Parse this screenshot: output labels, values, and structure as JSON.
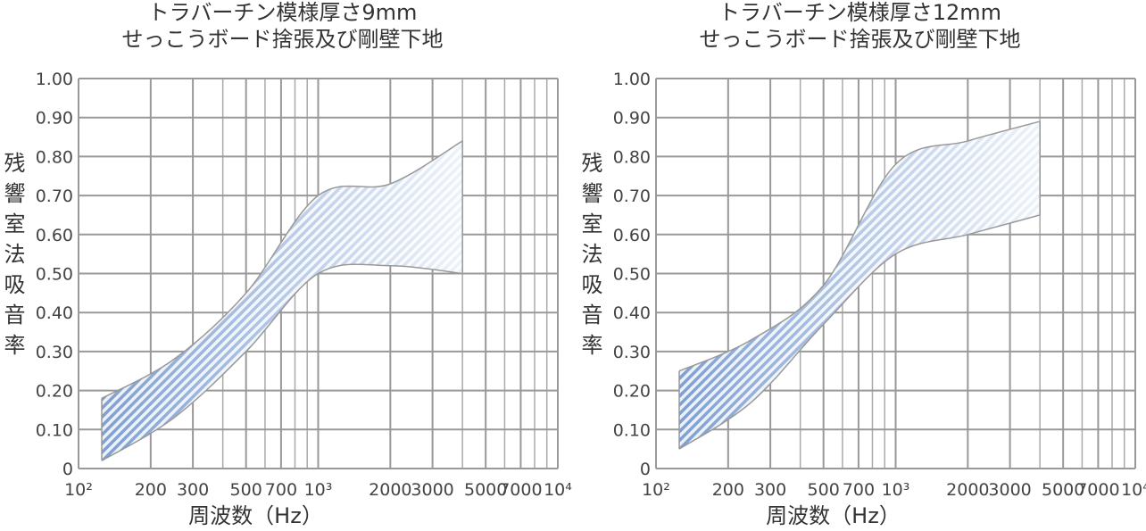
{
  "chart_data": [
    {
      "type": "band",
      "title": "トラバーチン模様厚さ9mm",
      "subtitle": "せっこうボード捨張及び剛壁下地",
      "x_label": "周波数（Hz）",
      "y_label": "残響室法吸音率",
      "x": [
        125,
        250,
        500,
        1000,
        2000,
        4000
      ],
      "lower": [
        0.02,
        0.13,
        0.3,
        0.5,
        0.52,
        0.5
      ],
      "upper": [
        0.18,
        0.28,
        0.45,
        0.7,
        0.73,
        0.84
      ],
      "xscale": "log",
      "xlim": [
        100,
        10000
      ],
      "ylim": [
        0,
        1
      ],
      "xticks": [
        {
          "value": 100,
          "label": "10²"
        },
        200,
        300,
        500,
        700,
        {
          "value": 1000,
          "label": "10³"
        },
        2000,
        3000,
        5000,
        7000,
        {
          "value": 10000,
          "label": "10⁴"
        }
      ],
      "minor_xticks": [
        400,
        600,
        800,
        900,
        4000,
        6000,
        8000,
        9000
      ],
      "yticks": [
        0,
        {
          "value": 0.1,
          "label": "0.10"
        },
        {
          "value": 0.2,
          "label": "0.20"
        },
        {
          "value": 0.3,
          "label": "0.30"
        },
        {
          "value": 0.4,
          "label": "0.40"
        },
        {
          "value": 0.5,
          "label": "0.50"
        },
        {
          "value": 0.6,
          "label": "0.60"
        },
        {
          "value": 0.7,
          "label": "0.70"
        },
        {
          "value": 0.8,
          "label": "0.80"
        },
        {
          "value": 0.9,
          "label": "0.90"
        },
        {
          "value": 1,
          "label": "1.00"
        }
      ],
      "grid": true,
      "color": "#7f9fd0"
    },
    {
      "type": "band",
      "title": "トラバーチン模様厚さ12mm",
      "subtitle": "せっこうボード捨張及び剛壁下地",
      "x_label": "周波数（Hz）",
      "y_label": "残響室法吸音率",
      "x": [
        125,
        250,
        500,
        1000,
        2000,
        4000
      ],
      "lower": [
        0.05,
        0.17,
        0.37,
        0.55,
        0.6,
        0.65
      ],
      "upper": [
        0.25,
        0.33,
        0.47,
        0.78,
        0.84,
        0.89
      ],
      "xscale": "log",
      "xlim": [
        100,
        10000
      ],
      "ylim": [
        0,
        1
      ],
      "xticks": [
        {
          "value": 100,
          "label": "10²"
        },
        200,
        300,
        500,
        700,
        {
          "value": 1000,
          "label": "10³"
        },
        2000,
        3000,
        5000,
        7000,
        {
          "value": 10000,
          "label": "10⁴"
        }
      ],
      "minor_xticks": [
        400,
        600,
        800,
        900,
        4000,
        6000,
        8000,
        9000
      ],
      "yticks": [
        0,
        {
          "value": 0.1,
          "label": "0.10"
        },
        {
          "value": 0.2,
          "label": "0.20"
        },
        {
          "value": 0.3,
          "label": "0.30"
        },
        {
          "value": 0.4,
          "label": "0.40"
        },
        {
          "value": 0.5,
          "label": "0.50"
        },
        {
          "value": 0.6,
          "label": "0.60"
        },
        {
          "value": 0.7,
          "label": "0.70"
        },
        {
          "value": 0.8,
          "label": "0.80"
        },
        {
          "value": 0.9,
          "label": "0.90"
        },
        {
          "value": 1,
          "label": "1.00"
        }
      ],
      "grid": true,
      "color": "#7f9fd0"
    }
  ]
}
